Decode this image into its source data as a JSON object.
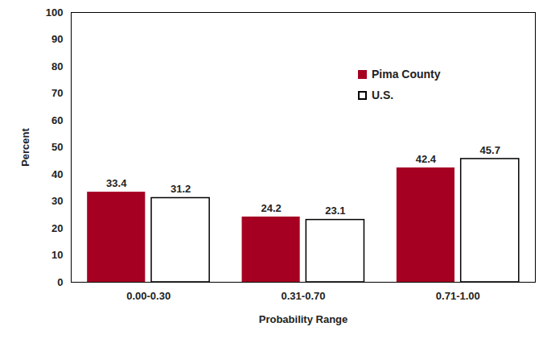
{
  "chart_data": {
    "type": "bar",
    "categories": [
      "0.00-0.30",
      "0.31-0.70",
      "0.71-1.00"
    ],
    "series": [
      {
        "name": "Pima County",
        "color": "#a50021",
        "values": [
          33.4,
          24.2,
          42.4
        ]
      },
      {
        "name": "U.S.",
        "color": "#ffffff",
        "values": [
          31.2,
          23.1,
          45.7
        ]
      }
    ],
    "x_label": "Probability Range",
    "y_label": "Percent",
    "ylim": [
      0,
      100
    ],
    "yticks": [
      0,
      10,
      20,
      30,
      40,
      50,
      60,
      70,
      80,
      90,
      100
    ],
    "legend": "top-right",
    "data_labels": true
  }
}
